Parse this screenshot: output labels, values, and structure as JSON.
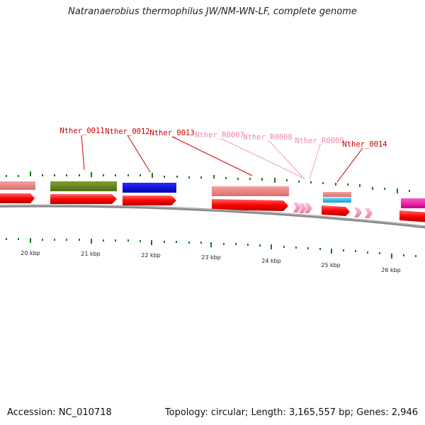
{
  "title": "Natranaerobius thermophilus JW/NM-WN-LF, complete genome",
  "footer": {
    "accession": "Accession: NC_010718",
    "summary": "Topology: circular; Length: 3,165,557 bp; Genes: 2,946"
  },
  "colors": {
    "cds": "#ff0000",
    "rna": "#ff99cc",
    "locus_label": "#cc0000",
    "rna_label": "#ee88aa",
    "tick": "#1a7a1a",
    "backbone": "#888888"
  },
  "scale_labels": [
    "20 kbp",
    "21 kbp",
    "22 kbp",
    "23 kbp",
    "24 kbp",
    "25 kbp",
    "26 kbp"
  ],
  "features": [
    {
      "name": "Nther_0011",
      "type": "CDS",
      "label_color": "#cc0000",
      "color": "#6b8e23"
    },
    {
      "name": "Nther_0012",
      "type": "CDS",
      "label_color": "#cc0000",
      "color": "#0000ee"
    },
    {
      "name": "Nther_0013",
      "type": "CDS",
      "label_color": "#cc0000",
      "color": "#f08080"
    },
    {
      "name": "Nther_R0007",
      "type": "tRNA",
      "label_color": "#ee88aa",
      "color": "#ff99cc"
    },
    {
      "name": "Nther_R0008",
      "type": "tRNA",
      "label_color": "#ee88aa",
      "color": "#ff99cc"
    },
    {
      "name": "Nther_R0009",
      "type": "tRNA",
      "label_color": "#ee88aa",
      "color": "#ff99cc"
    },
    {
      "name": "Nther_0014",
      "type": "CDS",
      "label_color": "#cc0000",
      "color": "#f08080"
    }
  ]
}
